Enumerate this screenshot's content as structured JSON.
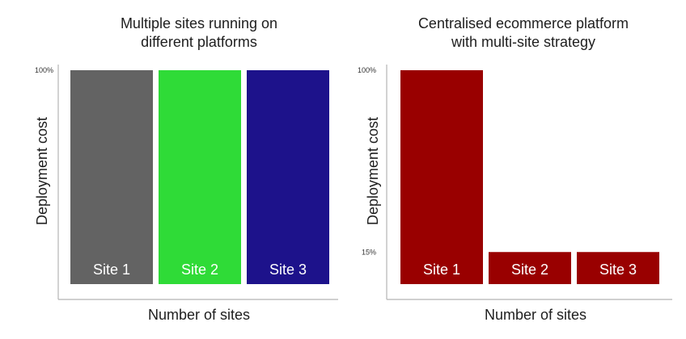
{
  "chart_data": [
    {
      "type": "bar",
      "title": [
        "Multiple sites running on",
        "different platforms"
      ],
      "xlabel": "Number of sites",
      "ylabel": "Deployment cost",
      "ytick_labels": [
        "100%"
      ],
      "ytick_values": [
        100
      ],
      "ylim": [
        0,
        100
      ],
      "categories": [
        "Site 1",
        "Site 2",
        "Site 3"
      ],
      "values": [
        100,
        100,
        100
      ],
      "colors": [
        "#636363",
        "#2fdb37",
        "#1d128b"
      ],
      "grid": false
    },
    {
      "type": "bar",
      "title": [
        "Centralised ecommerce platform",
        "with multi-site strategy"
      ],
      "xlabel": "Number of sites",
      "ylabel": "Deployment cost",
      "ytick_labels": [
        "100%",
        "15%"
      ],
      "ytick_values": [
        100,
        15
      ],
      "ylim": [
        0,
        100
      ],
      "categories": [
        "Site 1",
        "Site 2",
        "Site 3"
      ],
      "values": [
        100,
        15,
        15
      ],
      "colors": [
        "#990000",
        "#990000",
        "#990000"
      ],
      "grid": false
    }
  ]
}
